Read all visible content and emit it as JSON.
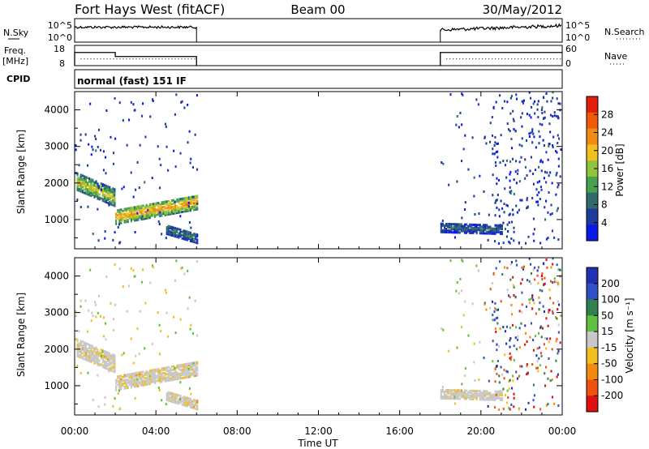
{
  "header": {
    "station": "Fort Hays West (fitACF)",
    "beam": "Beam 00",
    "date": "30/May/2012"
  },
  "panels": {
    "nsky_label": "N.Sky",
    "nsearch_label": "N.Search",
    "nsky_ticks": [
      "10^5",
      "10^0"
    ],
    "nsearch_ticks": [
      "10^5",
      "10^0"
    ],
    "freq_label": "Freq.",
    "freq_unit": "[MHz]",
    "freq_ticks": [
      "18",
      "8"
    ],
    "nave_label": "Nave",
    "nave_ticks": [
      "60",
      "0"
    ],
    "cpid_label": "CPID",
    "cpid_text": "normal (fast) 151 IF"
  },
  "axes": {
    "xlabel": "Time UT",
    "ylabel": "Slant Range [km]",
    "x_ticks": [
      "00:00",
      "04:00",
      "08:00",
      "12:00",
      "16:00",
      "20:00",
      "00:00"
    ],
    "y_ticks": [
      "1000",
      "2000",
      "3000",
      "4000"
    ]
  },
  "colorbars": {
    "power": {
      "label": "Power [dB]",
      "ticks": [
        "4",
        "8",
        "12",
        "16",
        "20",
        "24",
        "28"
      ],
      "colors": [
        "#0a1ae6",
        "#1e3c9c",
        "#2f6b6b",
        "#48a050",
        "#8fc43c",
        "#f0c01e",
        "#f08c14",
        "#f05a0a",
        "#e01e0a"
      ]
    },
    "velocity": {
      "label": "Velocity [m s⁻¹]",
      "ticks": [
        "200",
        "100",
        "50",
        "15",
        "-15",
        "-50",
        "-100",
        "-200"
      ],
      "colors": [
        "#2030b0",
        "#3050c8",
        "#308050",
        "#60c040",
        "#c8c8c8",
        "#f0c020",
        "#f08a10",
        "#f05010",
        "#e01010"
      ]
    }
  },
  "chart_data": [
    {
      "type": "line",
      "title": "N.Sky / N.Search",
      "x_range_hours": [
        0,
        24
      ],
      "scale": "log",
      "ylim": [
        "10^0",
        "10^5"
      ],
      "series": [
        {
          "name": "N.Sky",
          "segments": [
            [
              0,
              6
            ],
            [
              18,
              24
            ]
          ],
          "level_start": 0.55,
          "level_end_seg2": 0.75
        }
      ]
    },
    {
      "type": "line",
      "title": "Freq. / Nave",
      "x_range_hours": [
        0,
        24
      ],
      "series": [
        {
          "name": "Freq. [MHz]",
          "ylim": [
            8,
            18
          ],
          "points": [
            [
              0,
              14.5
            ],
            [
              2,
              14.5
            ],
            [
              2,
              12.5
            ],
            [
              6,
              12.5
            ],
            [
              18,
              14.5
            ],
            [
              24,
              14.5
            ]
          ]
        },
        {
          "name": "Nave",
          "ylim": [
            0,
            60
          ],
          "points": [
            [
              0,
              20
            ],
            [
              6,
              20
            ],
            [
              18,
              20
            ],
            [
              24,
              20
            ]
          ]
        }
      ]
    },
    {
      "type": "heatmap",
      "title": "Power [dB]",
      "xlabel": "Time UT",
      "ylabel": "Slant Range [km]",
      "x_range_hours": [
        0,
        24
      ],
      "ylim_km": [
        200,
        4500
      ],
      "value_range": [
        0,
        30
      ],
      "features": [
        {
          "name": "backscatter band 1",
          "t_start": 0.1,
          "t_end": 2.0,
          "range_start_km": 2000,
          "range_end_km": 1550,
          "power_db": 18
        },
        {
          "name": "backscatter band 2",
          "t_start": 2.0,
          "t_end": 6.0,
          "range_start_km": 1050,
          "range_end_km": 1450,
          "power_db": 22
        },
        {
          "name": "near-range echoes",
          "t_start": 4.5,
          "t_end": 6.0,
          "range_start_km": 700,
          "range_end_km": 450,
          "power_db": 10
        },
        {
          "name": "evening band",
          "t_start": 18.0,
          "t_end": 21.0,
          "range_start_km": 750,
          "range_end_km": 700,
          "power_db": 8
        }
      ]
    },
    {
      "type": "heatmap",
      "title": "Velocity [m s⁻¹]",
      "xlabel": "Time UT",
      "ylabel": "Slant Range [km]",
      "x_range_hours": [
        0,
        24
      ],
      "ylim_km": [
        200,
        4500
      ],
      "value_range": [
        -200,
        200
      ],
      "features": [
        {
          "name": "low-velocity band 1",
          "t_start": 0.1,
          "t_end": 2.0,
          "range_start_km": 2000,
          "range_end_km": 1550,
          "velocity": 0
        },
        {
          "name": "low-velocity band 2",
          "t_start": 2.0,
          "t_end": 6.0,
          "range_start_km": 1050,
          "range_end_km": 1450,
          "velocity": -10
        },
        {
          "name": "evening band",
          "t_start": 18.0,
          "t_end": 21.0,
          "range_start_km": 750,
          "range_end_km": 700,
          "velocity": 5
        }
      ]
    }
  ]
}
